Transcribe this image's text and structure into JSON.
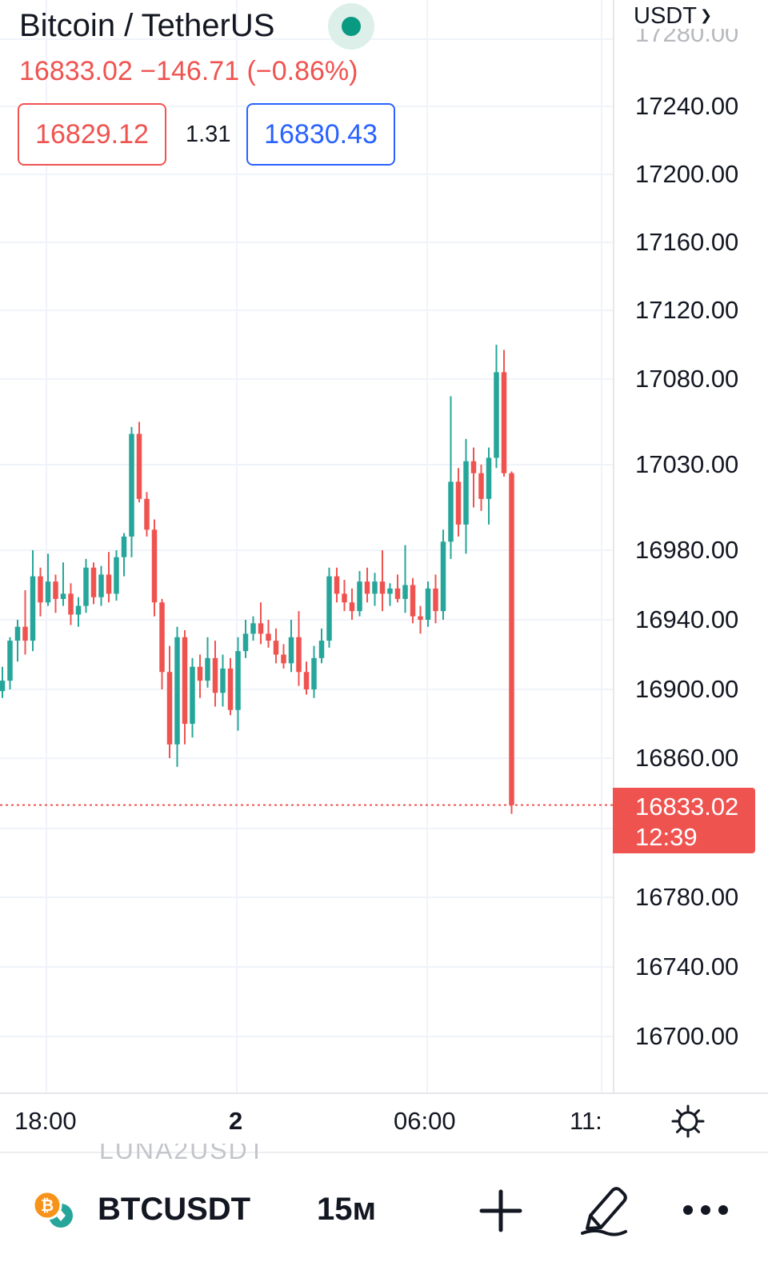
{
  "header": {
    "title": "Bitcoin / TetherUS",
    "change_text": "16833.02  −146.71 (−0.86%)",
    "bid": "16829.12",
    "spread": "1.31",
    "ask": "16830.43",
    "live_icon": "live-status-dot"
  },
  "price_axis": {
    "currency": "USDT",
    "ghost_label": "17280.00",
    "labels": [
      {
        "text": "17240.00",
        "value": 17240
      },
      {
        "text": "17200.00",
        "value": 17200
      },
      {
        "text": "17160.00",
        "value": 17160
      },
      {
        "text": "17120.00",
        "value": 17120
      },
      {
        "text": "17080.00",
        "value": 17080
      },
      {
        "text": "17030.00",
        "value": 17030
      },
      {
        "text": "16980.00",
        "value": 16980
      },
      {
        "text": "16940.00",
        "value": 16940
      },
      {
        "text": "16900.00",
        "value": 16900
      },
      {
        "text": "16860.00",
        "value": 16860
      },
      {
        "text": "16780.00",
        "value": 16780
      },
      {
        "text": "16740.00",
        "value": 16740
      },
      {
        "text": "16700.00",
        "value": 16700
      }
    ],
    "current_price": "16833.02",
    "countdown": "12:39"
  },
  "time_axis": {
    "labels": [
      {
        "text": "18:00",
        "bold": false
      },
      {
        "text": "2",
        "bold": true
      },
      {
        "text": "06:00",
        "bold": false
      },
      {
        "text": "11:",
        "bold": false
      }
    ]
  },
  "toolbar": {
    "ghost_symbol": "LUNA2USDT",
    "symbol": "BTCUSDT",
    "interval": "15м",
    "icons": [
      "coin-pair-icon",
      "plus-icon",
      "pencil-icon",
      "more-icon"
    ]
  },
  "colors": {
    "up": "#26a69a",
    "down": "#ef5350",
    "grid": "#f0f3fa",
    "text": "#131722",
    "ask": "#2962ff"
  },
  "chart_data": {
    "type": "candlestick",
    "symbol": "BTCUSDT",
    "interval": "15m",
    "ylim": [
      16660,
      17290
    ],
    "current_price": 16833.02,
    "x_ticks": [
      "18:00",
      "2",
      "06:00",
      "11:"
    ],
    "candles": [
      [
        16899,
        16913,
        16895,
        16905
      ],
      [
        16905,
        16930,
        16900,
        16928
      ],
      [
        16928,
        16940,
        16916,
        16936
      ],
      [
        16936,
        16957,
        16920,
        16928
      ],
      [
        16928,
        16980,
        16922,
        16965
      ],
      [
        16965,
        16970,
        16942,
        16950
      ],
      [
        16950,
        16978,
        16948,
        16962
      ],
      [
        16962,
        16966,
        16944,
        16952
      ],
      [
        16952,
        16973,
        16948,
        16955
      ],
      [
        16955,
        16961,
        16937,
        16943
      ],
      [
        16943,
        16953,
        16936,
        16948
      ],
      [
        16948,
        16975,
        16944,
        16970
      ],
      [
        16970,
        16973,
        16949,
        16953
      ],
      [
        16953,
        16971,
        16948,
        16966
      ],
      [
        16966,
        16979,
        16950,
        16955
      ],
      [
        16955,
        16980,
        16951,
        16976
      ],
      [
        16976,
        16990,
        16965,
        16988
      ],
      [
        16988,
        17052,
        16976,
        17048
      ],
      [
        17048,
        17055,
        17008,
        17010
      ],
      [
        17010,
        17014,
        16988,
        16992
      ],
      [
        16992,
        16998,
        16942,
        16950
      ],
      [
        16950,
        16952,
        16900,
        16910
      ],
      [
        16910,
        16925,
        16860,
        16868
      ],
      [
        16868,
        16936,
        16855,
        16930
      ],
      [
        16930,
        16934,
        16868,
        16880
      ],
      [
        16880,
        16918,
        16872,
        16913
      ],
      [
        16913,
        16920,
        16895,
        16905
      ],
      [
        16905,
        16930,
        16901,
        16918
      ],
      [
        16918,
        16928,
        16890,
        16898
      ],
      [
        16898,
        16920,
        16890,
        16912
      ],
      [
        16912,
        16918,
        16885,
        16888
      ],
      [
        16888,
        16930,
        16876,
        16922
      ],
      [
        16922,
        16940,
        16918,
        16932
      ],
      [
        16932,
        16942,
        16928,
        16938
      ],
      [
        16938,
        16950,
        16926,
        16932
      ],
      [
        16932,
        16940,
        16924,
        16928
      ],
      [
        16928,
        16935,
        16915,
        16920
      ],
      [
        16920,
        16926,
        16912,
        16915
      ],
      [
        16915,
        16940,
        16910,
        16930
      ],
      [
        16930,
        16945,
        16902,
        16910
      ],
      [
        16910,
        16916,
        16897,
        16900
      ],
      [
        16900,
        16925,
        16895,
        16918
      ],
      [
        16918,
        16935,
        16915,
        16928
      ],
      [
        16928,
        16970,
        16924,
        16965
      ],
      [
        16965,
        16970,
        16950,
        16955
      ],
      [
        16955,
        16963,
        16945,
        16950
      ],
      [
        16950,
        16958,
        16940,
        16945
      ],
      [
        16945,
        16968,
        16942,
        16962
      ],
      [
        16962,
        16970,
        16950,
        16955
      ],
      [
        16955,
        16967,
        16948,
        16962
      ],
      [
        16962,
        16980,
        16945,
        16955
      ],
      [
        16955,
        16961,
        16948,
        16958
      ],
      [
        16958,
        16966,
        16950,
        16952
      ],
      [
        16952,
        16983,
        16944,
        16960
      ],
      [
        16960,
        16964,
        16938,
        16942
      ],
      [
        16942,
        16948,
        16932,
        16940
      ],
      [
        16940,
        16962,
        16936,
        16958
      ],
      [
        16958,
        16966,
        16938,
        16945
      ],
      [
        16945,
        16992,
        16940,
        16985
      ],
      [
        16985,
        17070,
        16975,
        17020
      ],
      [
        17020,
        17028,
        16988,
        16995
      ],
      [
        16995,
        17045,
        16978,
        17032
      ],
      [
        17032,
        17040,
        17005,
        17025
      ],
      [
        17025,
        17030,
        17003,
        17010
      ],
      [
        17010,
        17040,
        16995,
        17034
      ],
      [
        17034,
        17100,
        17028,
        17084
      ],
      [
        17084,
        17097,
        17023,
        17025
      ],
      [
        17025,
        17026,
        16828,
        16833
      ]
    ]
  }
}
